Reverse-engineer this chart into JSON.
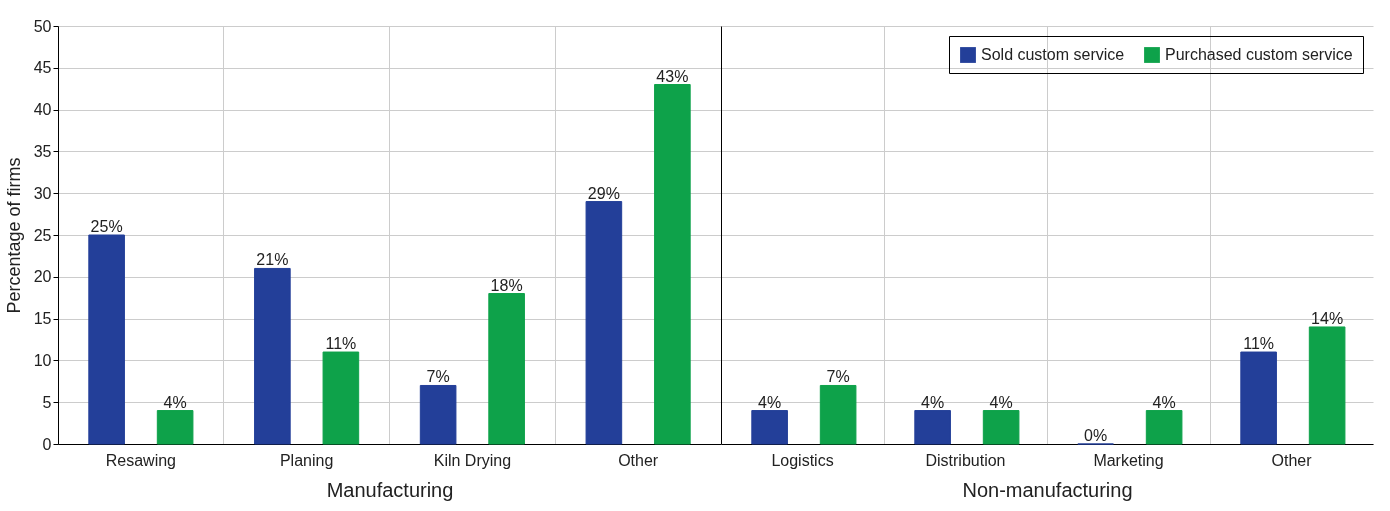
{
  "chart_data": [
    {
      "type": "bar",
      "xlabel": "Manufacturing",
      "ylabel": "Percentage of firms",
      "categories": [
        "Resawing",
        "Planing",
        "Kiln Drying",
        "Other"
      ],
      "ylim": [
        0,
        50
      ],
      "yticks": [
        0,
        5,
        10,
        15,
        20,
        25,
        30,
        35,
        40,
        45,
        50
      ],
      "grid": true,
      "legend": false,
      "series": [
        {
          "color": "#233f99",
          "values": [
            25,
            21,
            7,
            29
          ],
          "value_labels": [
            "25%",
            "21%",
            "7%",
            "29%"
          ]
        },
        {
          "color": "#0ea24a",
          "values": [
            4,
            11,
            18,
            43
          ],
          "value_labels": [
            "4%",
            "11%",
            "18%",
            "43%"
          ]
        }
      ]
    },
    {
      "type": "bar",
      "xlabel": "Non-manufacturing",
      "categories": [
        "Logistics",
        "Distribution",
        "Marketing",
        "Other"
      ],
      "ylim": [
        0,
        50
      ],
      "yticks": [
        0,
        5,
        10,
        15,
        20,
        25,
        30,
        35,
        40,
        45,
        50
      ],
      "grid": true,
      "legend": "top right",
      "tick_labels": "x",
      "series": [
        {
          "name": "Sold custom service",
          "color": "#233f99",
          "values": [
            4,
            4,
            0,
            11
          ],
          "value_labels": [
            "4%",
            "4%",
            "0%",
            "11%"
          ]
        },
        {
          "name": "Purchased custom service",
          "color": "#0ea24a",
          "values": [
            7,
            4,
            4,
            14
          ],
          "value_labels": [
            "7%",
            "4%",
            "4%",
            "14%"
          ]
        }
      ]
    }
  ]
}
